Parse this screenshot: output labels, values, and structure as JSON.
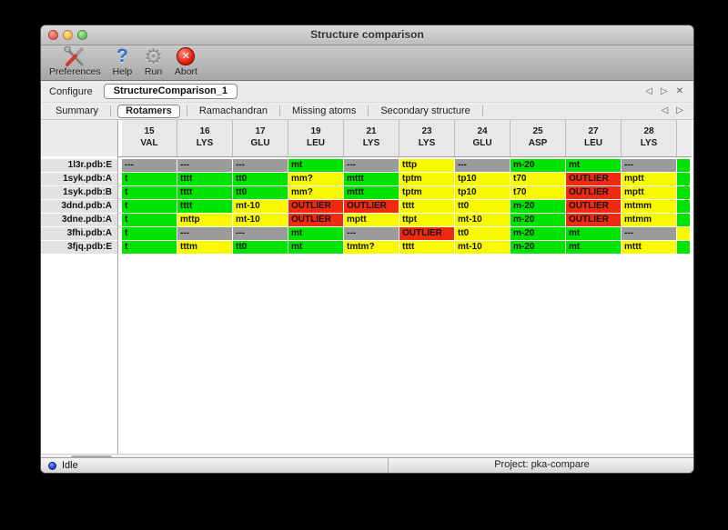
{
  "window": {
    "title": "Structure comparison"
  },
  "toolbar": {
    "buttons": [
      {
        "label": "Preferences",
        "icon": "tools-icon"
      },
      {
        "label": "Help",
        "icon": "question-mark-icon",
        "glyph": "?"
      },
      {
        "label": "Run",
        "icon": "gear-icon",
        "glyph": "⚙"
      },
      {
        "label": "Abort",
        "icon": "abort-icon",
        "glyph": "✕"
      }
    ]
  },
  "configure": {
    "label": "Configure",
    "value": "StructureComparison_1",
    "prev": "◁",
    "next": "▷",
    "close": "✕"
  },
  "tabs": {
    "items": [
      "Summary",
      "Rotamers",
      "Ramachandran",
      "Missing atoms",
      "Secondary structure"
    ],
    "selected_index": 1,
    "prev": "◁",
    "next": "▷"
  },
  "rotamer_table": {
    "columns": [
      {
        "num": "15",
        "res": "VAL"
      },
      {
        "num": "16",
        "res": "LYS"
      },
      {
        "num": "17",
        "res": "GLU"
      },
      {
        "num": "19",
        "res": "LEU"
      },
      {
        "num": "21",
        "res": "LYS"
      },
      {
        "num": "23",
        "res": "LYS"
      },
      {
        "num": "24",
        "res": "GLU"
      },
      {
        "num": "25",
        "res": "ASP"
      },
      {
        "num": "27",
        "res": "LEU"
      },
      {
        "num": "28",
        "res": "LYS"
      }
    ],
    "status_colors": {
      "green": "#00e300",
      "yellow": "#f8f800",
      "red": "#ee2a12",
      "gray": "#9b9b9b"
    },
    "rows": [
      {
        "label": "1l3r.pdb:E",
        "overflow": "green",
        "cells": [
          [
            "---",
            "gray"
          ],
          [
            "---",
            "gray"
          ],
          [
            "---",
            "gray"
          ],
          [
            "mt",
            "green"
          ],
          [
            "---",
            "gray"
          ],
          [
            "tttp",
            "yellow"
          ],
          [
            "---",
            "gray"
          ],
          [
            "m-20",
            "green"
          ],
          [
            "mt",
            "green"
          ],
          [
            "---",
            "gray"
          ]
        ]
      },
      {
        "label": "1syk.pdb:A",
        "overflow": "green",
        "cells": [
          [
            "t",
            "green"
          ],
          [
            "tttt",
            "green"
          ],
          [
            "tt0",
            "green"
          ],
          [
            "mm?",
            "yellow"
          ],
          [
            "mttt",
            "green"
          ],
          [
            "tptm",
            "yellow"
          ],
          [
            "tp10",
            "yellow"
          ],
          [
            "t70",
            "yellow"
          ],
          [
            "OUTLIER",
            "red"
          ],
          [
            "mptt",
            "yellow"
          ]
        ]
      },
      {
        "label": "1syk.pdb:B",
        "overflow": "green",
        "cells": [
          [
            "t",
            "green"
          ],
          [
            "tttt",
            "green"
          ],
          [
            "tt0",
            "green"
          ],
          [
            "mm?",
            "yellow"
          ],
          [
            "mttt",
            "green"
          ],
          [
            "tptm",
            "yellow"
          ],
          [
            "tp10",
            "yellow"
          ],
          [
            "t70",
            "yellow"
          ],
          [
            "OUTLIER",
            "red"
          ],
          [
            "mptt",
            "yellow"
          ]
        ]
      },
      {
        "label": "3dnd.pdb:A",
        "overflow": "green",
        "cells": [
          [
            "t",
            "green"
          ],
          [
            "tttt",
            "green"
          ],
          [
            "mt-10",
            "yellow"
          ],
          [
            "OUTLIER",
            "red"
          ],
          [
            "OUTLIER",
            "red"
          ],
          [
            "tttt",
            "yellow"
          ],
          [
            "tt0",
            "yellow"
          ],
          [
            "m-20",
            "green"
          ],
          [
            "OUTLIER",
            "red"
          ],
          [
            "mtmm",
            "yellow"
          ]
        ]
      },
      {
        "label": "3dne.pdb:A",
        "overflow": "green",
        "cells": [
          [
            "t",
            "green"
          ],
          [
            "mttp",
            "yellow"
          ],
          [
            "mt-10",
            "yellow"
          ],
          [
            "OUTLIER",
            "red"
          ],
          [
            "mptt",
            "yellow"
          ],
          [
            "ttpt",
            "yellow"
          ],
          [
            "mt-10",
            "yellow"
          ],
          [
            "m-20",
            "green"
          ],
          [
            "OUTLIER",
            "red"
          ],
          [
            "mtmm",
            "yellow"
          ]
        ]
      },
      {
        "label": "3fhi.pdb:A",
        "overflow": "yellow",
        "cells": [
          [
            "t",
            "green"
          ],
          [
            "---",
            "gray"
          ],
          [
            "---",
            "gray"
          ],
          [
            "mt",
            "green"
          ],
          [
            "---",
            "gray"
          ],
          [
            "OUTLIER",
            "red"
          ],
          [
            "tt0",
            "yellow"
          ],
          [
            "m-20",
            "green"
          ],
          [
            "mt",
            "green"
          ],
          [
            "---",
            "gray"
          ]
        ]
      },
      {
        "label": "3fjq.pdb:E",
        "overflow": "green",
        "cells": [
          [
            "t",
            "green"
          ],
          [
            "tttm",
            "yellow"
          ],
          [
            "tt0",
            "green"
          ],
          [
            "mt",
            "green"
          ],
          [
            "tmtm?",
            "yellow"
          ],
          [
            "tttt",
            "yellow"
          ],
          [
            "mt-10",
            "yellow"
          ],
          [
            "m-20",
            "green"
          ],
          [
            "mt",
            "green"
          ],
          [
            "mttt",
            "yellow"
          ]
        ]
      }
    ]
  },
  "statusbar": {
    "status": "Idle",
    "project": "Project: pka-compare"
  }
}
